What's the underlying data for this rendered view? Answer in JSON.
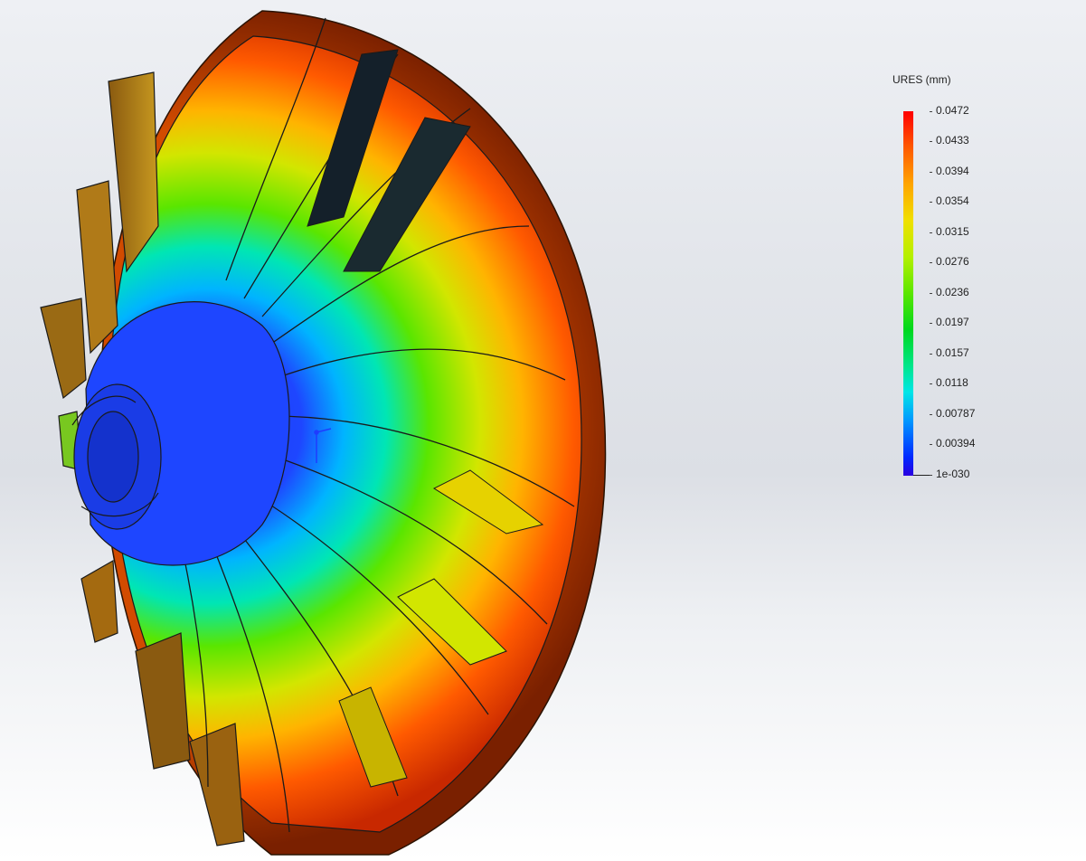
{
  "legend": {
    "title": "URES (mm)",
    "ticks": [
      "0.0472",
      "0.0433",
      "0.0394",
      "0.0354",
      "0.0315",
      "0.0276",
      "0.0236",
      "0.0197",
      "0.0157",
      "0.0118",
      "0.00787",
      "0.00394",
      "1e-030"
    ]
  },
  "colors": {
    "max": "#ff0000",
    "high": "#ffa500",
    "mid": "#5ae600",
    "low": "#00e6e6",
    "min": "#0028ff"
  }
}
